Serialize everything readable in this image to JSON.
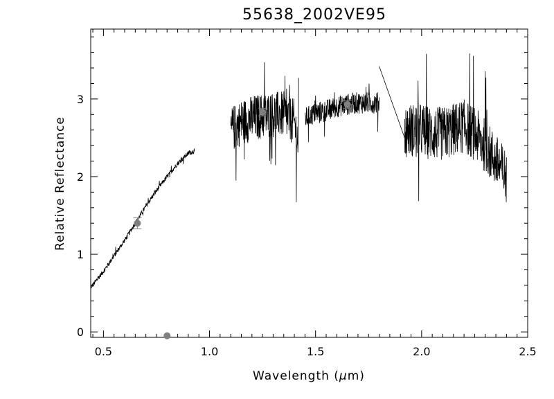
{
  "chart_data": {
    "type": "line",
    "title": "55638_2002VE95",
    "xlabel_pre": "Wavelength (",
    "xlabel_mu": "μ",
    "xlabel_post": "m)",
    "ylabel": "Relative Reflectance",
    "xlim": [
      0.44,
      2.5
    ],
    "ylim": [
      -0.07,
      3.9
    ],
    "x_ticks": [
      0.5,
      1.0,
      1.5,
      2.0,
      2.5
    ],
    "x_tick_labels": [
      "0.5",
      "1.0",
      "1.5",
      "2.0",
      "2.5"
    ],
    "y_ticks": [
      0,
      1,
      2,
      3
    ],
    "y_tick_labels": [
      "0",
      "1",
      "2",
      "3"
    ],
    "grid": false,
    "legend": "none",
    "colors": {
      "spectrum": "#000000",
      "photometry": "#808080"
    },
    "series": [
      {
        "style": "line",
        "segments": [
          {
            "x": [
              0.44,
              0.5,
              0.55,
              0.6,
              0.65,
              0.7,
              0.75,
              0.8,
              0.85,
              0.9,
              0.93
            ],
            "y": [
              0.57,
              0.78,
              0.98,
              1.18,
              1.4,
              1.62,
              1.82,
              2.0,
              2.17,
              2.3,
              2.33
            ],
            "noise": 0.03
          },
          {
            "x": [
              1.1,
              1.15,
              1.2,
              1.25,
              1.3,
              1.35,
              1.4,
              1.42
            ],
            "y": [
              2.6,
              2.7,
              2.75,
              2.78,
              2.8,
              2.8,
              2.7,
              2.4
            ],
            "noise": 0.3
          },
          {
            "x": [
              1.45,
              1.5,
              1.55,
              1.6,
              1.65,
              1.7,
              1.75,
              1.8
            ],
            "y": [
              2.75,
              2.82,
              2.85,
              2.9,
              2.93,
              2.95,
              2.95,
              2.95
            ],
            "noise": 0.14
          },
          {
            "x": [
              1.8,
              1.92
            ],
            "y": [
              3.42,
              2.5
            ],
            "noise": 0
          },
          {
            "x": [
              1.92,
              2.0,
              2.05,
              2.1,
              2.15,
              2.2,
              2.25,
              2.3,
              2.35,
              2.4
            ],
            "y": [
              2.6,
              2.6,
              2.55,
              2.55,
              2.6,
              2.65,
              2.55,
              2.4,
              2.2,
              2.0
            ],
            "noise": 0.35
          }
        ]
      },
      {
        "style": "points",
        "points": [
          {
            "x": 0.66,
            "y": 1.4,
            "err": 0.07
          },
          {
            "x": 0.8,
            "y": -0.05,
            "err": 0
          },
          {
            "x": 1.25,
            "y": 2.83,
            "err": 0.05
          },
          {
            "x": 1.65,
            "y": 2.93,
            "err": 0.05
          }
        ]
      }
    ]
  }
}
